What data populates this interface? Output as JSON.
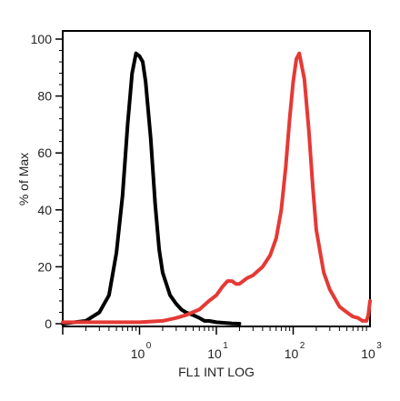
{
  "chart_data": {
    "type": "line",
    "title": "",
    "xlabel": "FL1 INT LOG",
    "ylabel": "% of Max",
    "x_scale": "log",
    "xlim": [
      0.1,
      1000
    ],
    "ylim": [
      0,
      100
    ],
    "x_ticks": [
      {
        "base": "10",
        "exp": "0",
        "value": 1
      },
      {
        "base": "10",
        "exp": "1",
        "value": 10
      },
      {
        "base": "10",
        "exp": "2",
        "value": 100
      },
      {
        "base": "10",
        "exp": "3",
        "value": 1000
      }
    ],
    "y_ticks": [
      "0",
      "20",
      "40",
      "60",
      "80",
      "100"
    ],
    "grid": false,
    "legend": "none",
    "series": [
      {
        "color": "#000000",
        "x": [
          0.1,
          0.2,
          0.3,
          0.4,
          0.5,
          0.6,
          0.7,
          0.8,
          0.9,
          1.0,
          1.1,
          1.2,
          1.4,
          1.6,
          1.8,
          2.0,
          2.5,
          3.0,
          3.5,
          4.0,
          5.0,
          6.0,
          7.0,
          8.0,
          10,
          13,
          16,
          20
        ],
        "y": [
          0,
          1,
          4,
          10,
          25,
          45,
          70,
          88,
          95,
          94,
          92,
          85,
          65,
          42,
          26,
          18,
          10,
          7,
          5,
          4,
          3,
          2,
          1,
          1,
          0.5,
          0.3,
          0.1,
          0
        ]
      },
      {
        "color": "#e53935",
        "x": [
          0.1,
          0.3,
          0.6,
          1.0,
          2.0,
          3.0,
          4.0,
          6.0,
          8.0,
          10,
          12,
          14,
          16,
          18,
          20,
          25,
          30,
          40,
          50,
          60,
          70,
          80,
          90,
          100,
          110,
          120,
          140,
          160,
          180,
          200,
          250,
          300,
          400,
          500,
          600,
          700,
          800,
          900,
          950,
          1000
        ],
        "y": [
          0.5,
          0.5,
          0.5,
          0.5,
          1,
          2,
          3,
          5,
          8,
          10,
          13,
          15,
          15,
          14,
          14,
          16,
          17,
          20,
          24,
          30,
          40,
          55,
          72,
          85,
          93,
          95,
          86,
          68,
          48,
          33,
          18,
          12,
          6,
          4,
          2.5,
          2,
          1,
          1,
          3,
          8
        ]
      }
    ]
  }
}
